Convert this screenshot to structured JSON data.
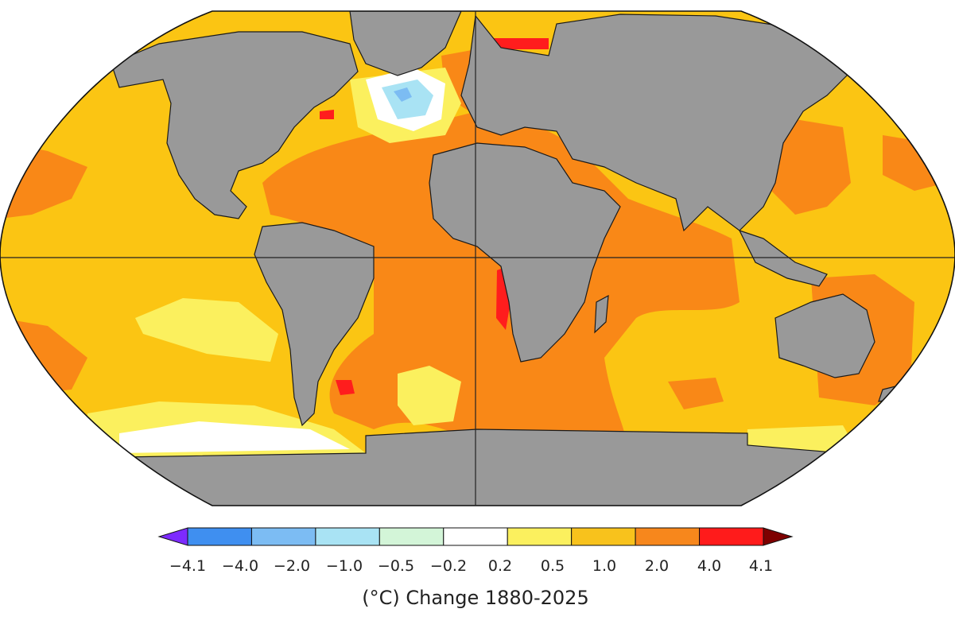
{
  "map": {
    "projection": "Robinson-like ellipse",
    "land_color": "#999999",
    "ocean_levels": [
      "yellow",
      "gold",
      "orange",
      "red",
      "white",
      "light-blue",
      "blue"
    ]
  },
  "colorbar": {
    "title": "(°C) Change 1880-2025",
    "tick_labels": [
      "−4.1",
      "−4.0",
      "−2.0",
      "−1.0",
      "−0.5",
      "−0.2",
      "0.2",
      "0.5",
      "1.0",
      "2.0",
      "4.0",
      "4.1"
    ],
    "colors": [
      "#7d2bff",
      "#3f8ff0",
      "#7cbcf3",
      "#a9e3f4",
      "#d3f5d8",
      "#ffffff",
      "#fbf05e",
      "#f8c21c",
      "#f7871c",
      "#ff1b1b",
      "#7e0000"
    ]
  },
  "palette": {
    "white": "#ffffff",
    "light_blue": "#a9e3f4",
    "blue": "#7cbcf3",
    "yellow": "#fbf05e",
    "gold": "#fbc513",
    "orange": "#f98817",
    "red": "#ff1d1d"
  }
}
